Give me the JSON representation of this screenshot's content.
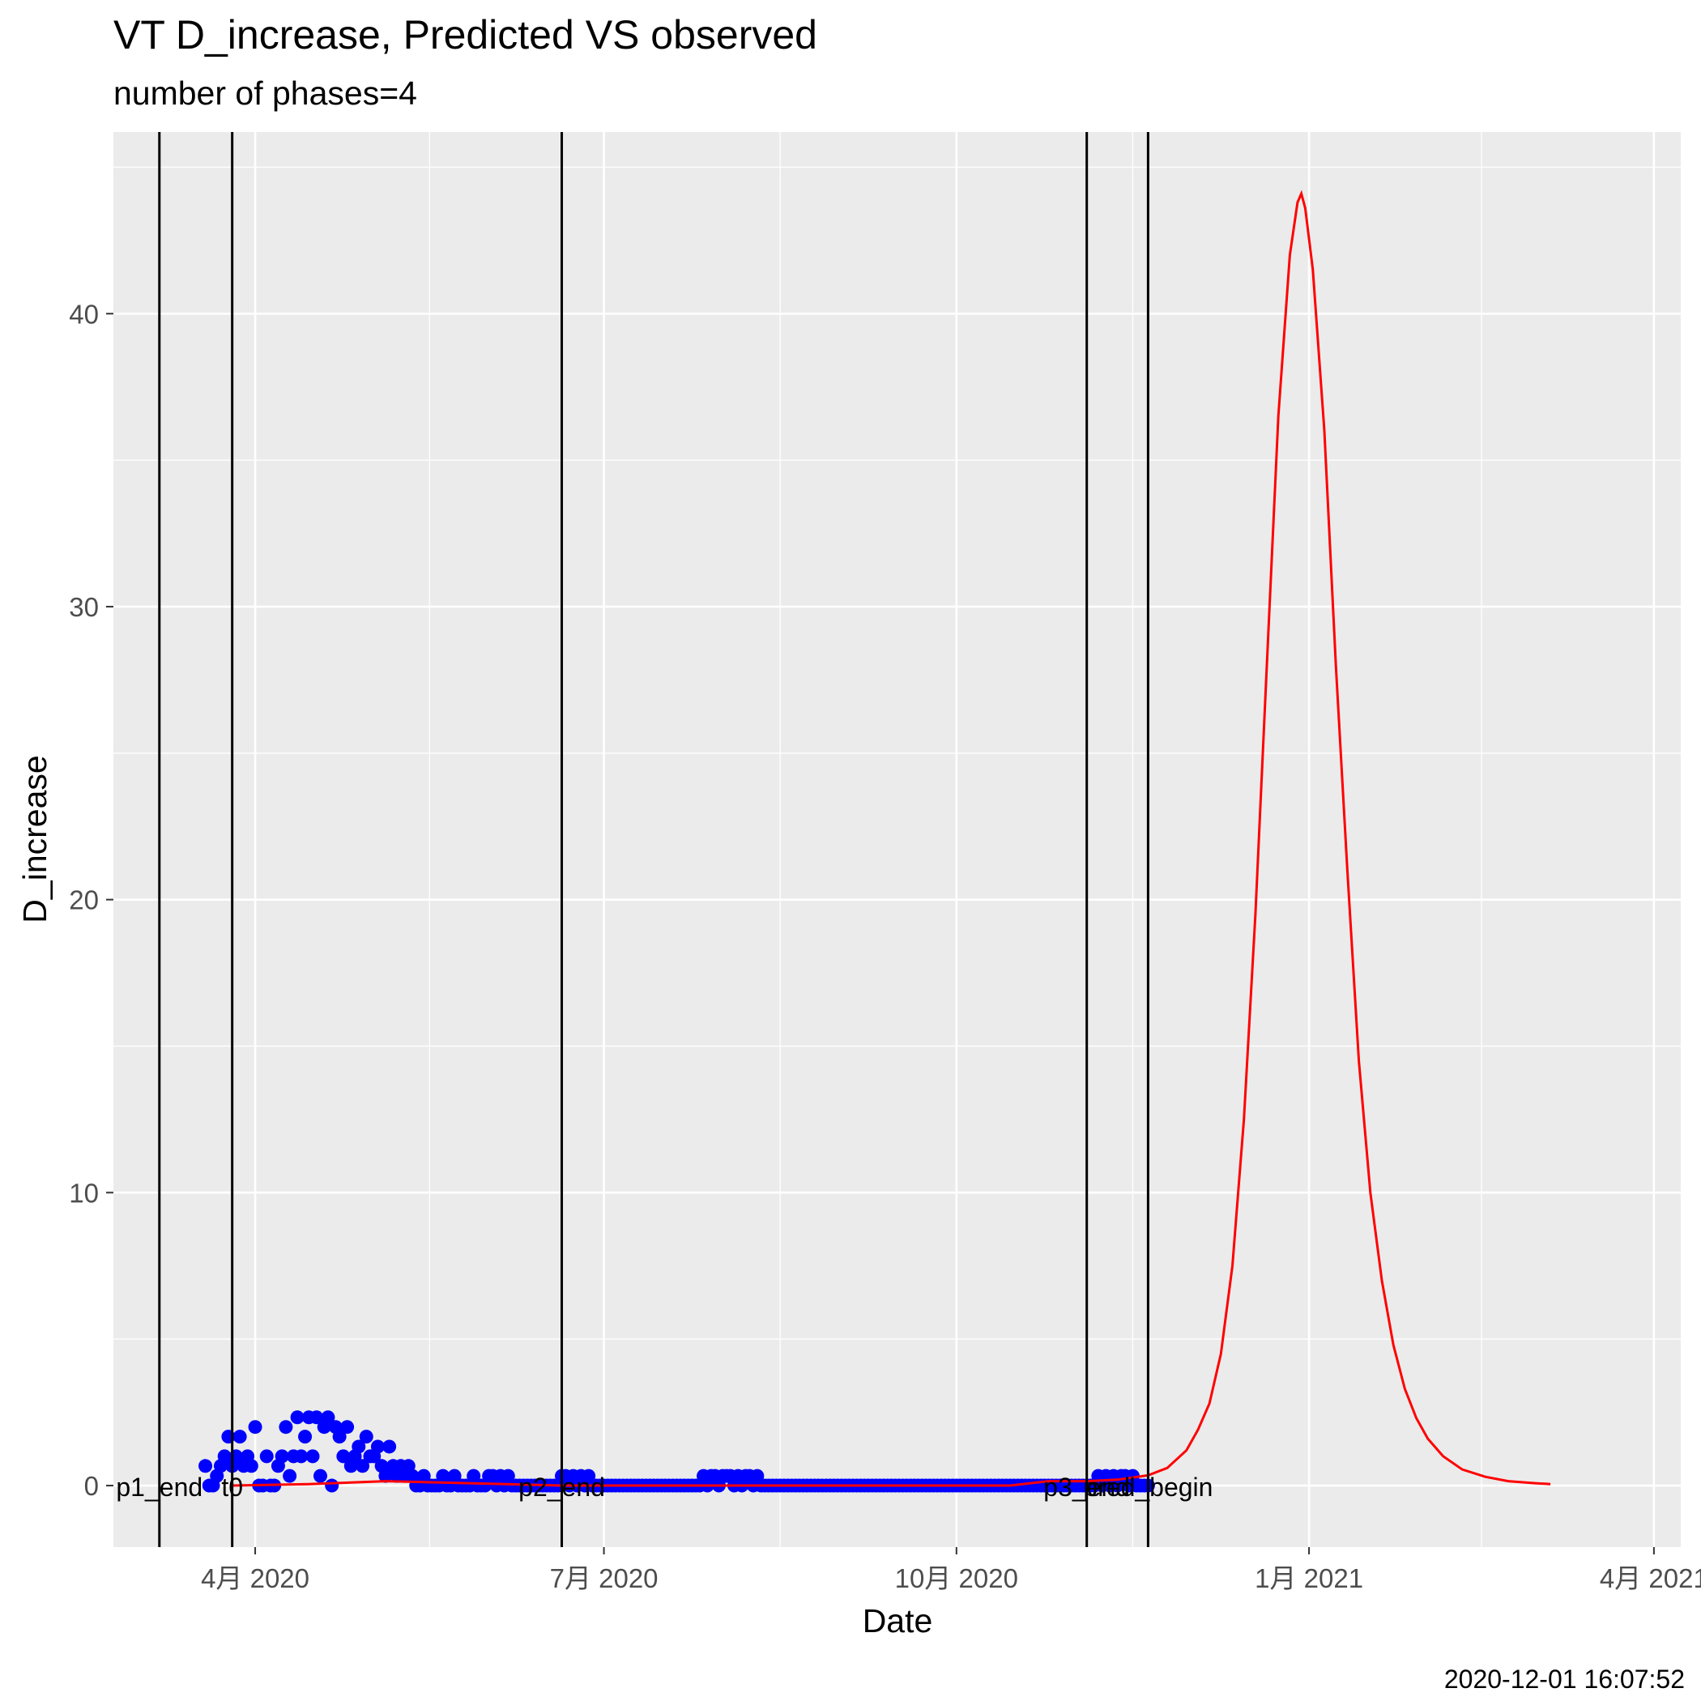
{
  "chart_data": {
    "type": "line+scatter",
    "title": "VT D_increase, Predicted VS observed",
    "subtitle": "number of phases=4",
    "xlabel": "Date",
    "ylabel": "D_increase",
    "caption": "2020-12-01 16:07:52",
    "xlim": [
      "2020-02-24",
      "2021-04-08"
    ],
    "ylim": [
      -2.1,
      46.2
    ],
    "grid": true,
    "x_ticks": [
      {
        "date": "2020-04-01",
        "label": "4月 2020"
      },
      {
        "date": "2020-07-01",
        "label": "7月 2020"
      },
      {
        "date": "2020-10-01",
        "label": "10月 2020"
      },
      {
        "date": "2021-01-01",
        "label": "1月 2021"
      },
      {
        "date": "2021-04-01",
        "label": "4月 2021"
      }
    ],
    "y_ticks": [
      0,
      10,
      20,
      30,
      40
    ],
    "phase_markers": [
      {
        "date": "2020-03-07",
        "label": "p1_end"
      },
      {
        "date": "2020-03-26",
        "label": "t0"
      },
      {
        "date": "2020-06-20",
        "label": "p2_end"
      },
      {
        "date": "2020-11-04",
        "label": "p3_end"
      },
      {
        "date": "2020-11-20",
        "label": "pred_begin"
      }
    ],
    "series": [
      {
        "name": "observed",
        "kind": "scatter",
        "color": "#0000ff",
        "points": [
          [
            "2020-03-19",
            0.67
          ],
          [
            "2020-03-20",
            0.0
          ],
          [
            "2020-03-21",
            0.0
          ],
          [
            "2020-03-22",
            0.33
          ],
          [
            "2020-03-23",
            0.67
          ],
          [
            "2020-03-24",
            1.0
          ],
          [
            "2020-03-25",
            1.67
          ],
          [
            "2020-03-26",
            0.67
          ],
          [
            "2020-03-27",
            1.0
          ],
          [
            "2020-03-28",
            1.67
          ],
          [
            "2020-03-29",
            0.67
          ],
          [
            "2020-03-30",
            1.0
          ],
          [
            "2020-03-31",
            0.67
          ],
          [
            "2020-04-01",
            2.0
          ],
          [
            "2020-04-02",
            0.0
          ],
          [
            "2020-04-03",
            0.0
          ],
          [
            "2020-04-04",
            1.0
          ],
          [
            "2020-04-05",
            0.0
          ],
          [
            "2020-04-06",
            0.0
          ],
          [
            "2020-04-07",
            0.67
          ],
          [
            "2020-04-08",
            1.0
          ],
          [
            "2020-04-09",
            2.0
          ],
          [
            "2020-04-10",
            0.33
          ],
          [
            "2020-04-11",
            1.0
          ],
          [
            "2020-04-12",
            2.33
          ],
          [
            "2020-04-13",
            1.0
          ],
          [
            "2020-04-14",
            1.67
          ],
          [
            "2020-04-15",
            2.33
          ],
          [
            "2020-04-16",
            1.0
          ],
          [
            "2020-04-17",
            2.33
          ],
          [
            "2020-04-18",
            0.33
          ],
          [
            "2020-04-19",
            2.0
          ],
          [
            "2020-04-20",
            2.33
          ],
          [
            "2020-04-21",
            0.0
          ],
          [
            "2020-04-22",
            2.0
          ],
          [
            "2020-04-23",
            1.67
          ],
          [
            "2020-04-24",
            1.0
          ],
          [
            "2020-04-25",
            2.0
          ],
          [
            "2020-04-26",
            0.67
          ],
          [
            "2020-04-27",
            1.0
          ],
          [
            "2020-04-28",
            1.33
          ],
          [
            "2020-04-29",
            0.67
          ],
          [
            "2020-04-30",
            1.67
          ],
          [
            "2020-05-01",
            1.0
          ],
          [
            "2020-05-02",
            1.0
          ],
          [
            "2020-05-03",
            1.33
          ],
          [
            "2020-05-04",
            0.67
          ],
          [
            "2020-05-05",
            0.33
          ],
          [
            "2020-05-06",
            1.33
          ],
          [
            "2020-05-07",
            0.67
          ],
          [
            "2020-05-08",
            0.33
          ],
          [
            "2020-05-09",
            0.67
          ],
          [
            "2020-05-10",
            0.33
          ],
          [
            "2020-05-11",
            0.67
          ],
          [
            "2020-05-12",
            0.33
          ],
          [
            "2020-05-13",
            0.0
          ],
          [
            "2020-05-14",
            0.0
          ],
          [
            "2020-05-15",
            0.33
          ],
          [
            "2020-05-16",
            0.0
          ],
          [
            "2020-05-17",
            0.0
          ],
          [
            "2020-05-18",
            0.0
          ],
          [
            "2020-05-19",
            0.0
          ],
          [
            "2020-05-20",
            0.33
          ],
          [
            "2020-05-21",
            0.0
          ],
          [
            "2020-05-22",
            0.0
          ],
          [
            "2020-05-23",
            0.33
          ],
          [
            "2020-05-24",
            0.0
          ],
          [
            "2020-05-25",
            0.0
          ],
          [
            "2020-05-26",
            0.0
          ],
          [
            "2020-05-27",
            0.0
          ],
          [
            "2020-05-28",
            0.33
          ],
          [
            "2020-05-29",
            0.0
          ],
          [
            "2020-05-30",
            0.0
          ],
          [
            "2020-05-31",
            0.0
          ],
          [
            "2020-06-01",
            0.33
          ],
          [
            "2020-06-02",
            0.33
          ],
          [
            "2020-06-03",
            0.0
          ],
          [
            "2020-06-04",
            0.33
          ],
          [
            "2020-06-05",
            0.0
          ],
          [
            "2020-06-06",
            0.33
          ],
          [
            "2020-06-07",
            0.0
          ],
          [
            "2020-06-08",
            0.0
          ],
          [
            "2020-06-09",
            0.0
          ],
          [
            "2020-06-20",
            0.33
          ],
          [
            "2020-06-21",
            0.33
          ],
          [
            "2020-06-22",
            0.0
          ],
          [
            "2020-06-23",
            0.33
          ],
          [
            "2020-06-24",
            0.0
          ],
          [
            "2020-06-25",
            0.33
          ],
          [
            "2020-06-26",
            0.0
          ],
          [
            "2020-06-27",
            0.33
          ],
          [
            "2020-07-27",
            0.33
          ],
          [
            "2020-07-28",
            0.0
          ],
          [
            "2020-07-29",
            0.33
          ],
          [
            "2020-07-30",
            0.33
          ],
          [
            "2020-07-31",
            0.0
          ],
          [
            "2020-08-01",
            0.33
          ],
          [
            "2020-08-02",
            0.33
          ],
          [
            "2020-08-03",
            0.33
          ],
          [
            "2020-08-04",
            0.0
          ],
          [
            "2020-08-05",
            0.33
          ],
          [
            "2020-08-06",
            0.0
          ],
          [
            "2020-08-07",
            0.33
          ],
          [
            "2020-08-08",
            0.33
          ],
          [
            "2020-08-09",
            0.0
          ],
          [
            "2020-08-10",
            0.33
          ],
          [
            "2020-11-07",
            0.33
          ],
          [
            "2020-11-08",
            0.0
          ],
          [
            "2020-11-09",
            0.33
          ],
          [
            "2020-11-10",
            0.0
          ],
          [
            "2020-11-11",
            0.33
          ],
          [
            "2020-11-12",
            0.0
          ],
          [
            "2020-11-13",
            0.33
          ],
          [
            "2020-11-14",
            0.33
          ],
          [
            "2020-11-15",
            0.0
          ],
          [
            "2020-11-16",
            0.33
          ],
          [
            "2020-11-17",
            0.0
          ],
          [
            "2020-11-18",
            0.0
          ],
          [
            "2020-11-19",
            0.0
          ],
          [
            "2020-11-20",
            0.0
          ]
        ],
        "zero_runs": [
          [
            "2020-06-10",
            "2020-06-19"
          ],
          [
            "2020-06-28",
            "2020-07-26"
          ],
          [
            "2020-08-11",
            "2020-11-06"
          ]
        ]
      },
      {
        "name": "predicted",
        "kind": "line",
        "color": "#ff0000",
        "points": [
          [
            "2020-03-26",
            0.0
          ],
          [
            "2020-04-15",
            0.05
          ],
          [
            "2020-05-05",
            0.15
          ],
          [
            "2020-05-15",
            0.12
          ],
          [
            "2020-06-20",
            0.0
          ],
          [
            "2020-10-15",
            0.0
          ],
          [
            "2020-10-25",
            0.15
          ],
          [
            "2020-11-04",
            0.15
          ],
          [
            "2020-11-12",
            0.2
          ],
          [
            "2020-11-20",
            0.35
          ],
          [
            "2020-11-25",
            0.6
          ],
          [
            "2020-11-30",
            1.2
          ],
          [
            "2020-12-03",
            1.9
          ],
          [
            "2020-12-06",
            2.8
          ],
          [
            "2020-12-09",
            4.5
          ],
          [
            "2020-12-12",
            7.5
          ],
          [
            "2020-12-15",
            12.5
          ],
          [
            "2020-12-18",
            19.5
          ],
          [
            "2020-12-21",
            28.0
          ],
          [
            "2020-12-24",
            36.5
          ],
          [
            "2020-12-27",
            42.0
          ],
          [
            "2020-12-29",
            43.8
          ],
          [
            "2020-12-30",
            44.1
          ],
          [
            "2020-12-31",
            43.6
          ],
          [
            "2021-01-02",
            41.5
          ],
          [
            "2021-01-05",
            36.0
          ],
          [
            "2021-01-08",
            28.0
          ],
          [
            "2021-01-11",
            21.0
          ],
          [
            "2021-01-14",
            14.5
          ],
          [
            "2021-01-17",
            10.0
          ],
          [
            "2021-01-20",
            7.0
          ],
          [
            "2021-01-23",
            4.8
          ],
          [
            "2021-01-26",
            3.3
          ],
          [
            "2021-01-29",
            2.3
          ],
          [
            "2021-02-01",
            1.6
          ],
          [
            "2021-02-05",
            1.0
          ],
          [
            "2021-02-10",
            0.55
          ],
          [
            "2021-02-16",
            0.3
          ],
          [
            "2021-02-22",
            0.15
          ],
          [
            "2021-03-01",
            0.08
          ],
          [
            "2021-03-05",
            0.05
          ]
        ]
      }
    ]
  }
}
